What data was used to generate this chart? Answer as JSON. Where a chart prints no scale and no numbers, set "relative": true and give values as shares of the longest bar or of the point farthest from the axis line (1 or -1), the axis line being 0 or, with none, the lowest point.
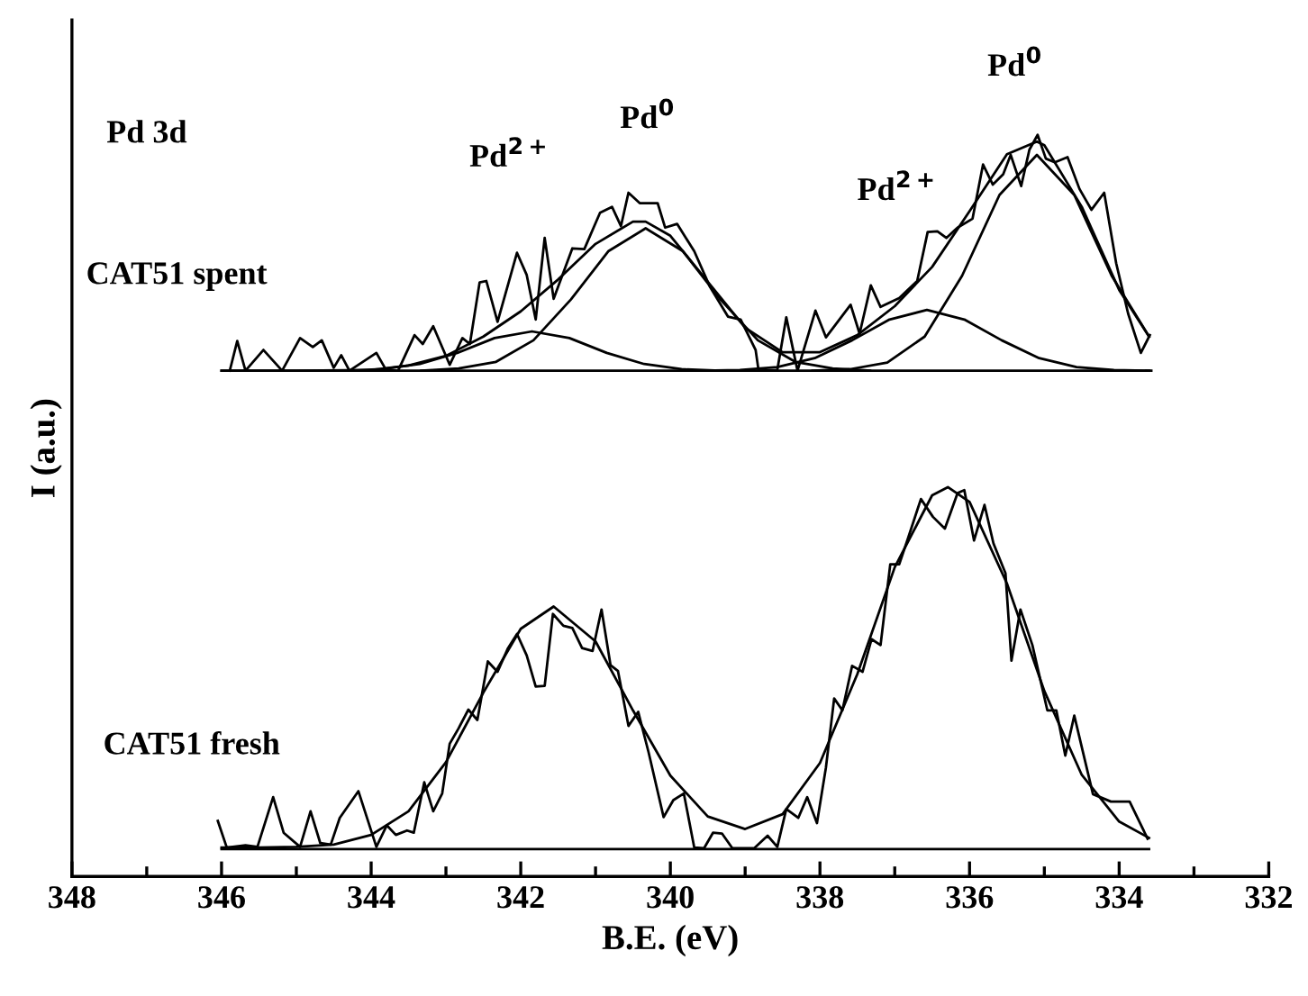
{
  "chart_data": {
    "type": "line",
    "relative": true,
    "xlabel": "B.E. (eV)",
    "ylabel": "I (a.u.)",
    "xlim": [
      348,
      332
    ],
    "xticks": [
      348,
      {
        "value": 347,
        "label": null
      },
      346,
      {
        "value": 345,
        "label": null
      },
      344,
      {
        "value": 343,
        "label": null
      },
      342,
      {
        "value": 341,
        "label": null
      },
      340,
      {
        "value": 339,
        "label": null
      },
      338,
      {
        "value": 337,
        "label": null
      },
      336,
      {
        "value": 335,
        "label": null
      },
      334,
      {
        "value": 333,
        "label": null
      },
      332
    ],
    "grid": false,
    "legend": false,
    "marker": "none",
    "line_style": "solid",
    "annotations": [
      "Pd 3d",
      "Pd$^{2+}$",
      "Pd$^{0}$",
      "Pd$^{2+}$",
      "Pd$^{0}$",
      "CAT51 spent",
      "CAT51 fresh"
    ],
    "series": [
      {
        "color": "#000000",
        "x": [
          346.05,
          345.93,
          345.68,
          345.52,
          345.31,
          345.17,
          344.95,
          344.81,
          344.68,
          344.54,
          344.42,
          344.17,
          343.93,
          343.79,
          343.67,
          343.52,
          343.43,
          343.29,
          343.17,
          343.05,
          342.95,
          342.83,
          342.7,
          342.58,
          342.44,
          342.31,
          342.17,
          342.05,
          341.92,
          341.8,
          341.68,
          341.57,
          341.43,
          341.31,
          341.18,
          341.04,
          340.92,
          340.8,
          340.7,
          340.56,
          340.43,
          340.29,
          340.09,
          339.96,
          339.82,
          339.68,
          339.55,
          339.43,
          339.31,
          339.17,
          338.88,
          338.7,
          338.57,
          338.45,
          338.29,
          338.17,
          338.04,
          337.92,
          337.81,
          337.7,
          337.57,
          337.43,
          337.31,
          337.19,
          337.06,
          336.94,
          336.82,
          336.65,
          336.49,
          336.33,
          336.16,
          336.07,
          335.94,
          335.8,
          335.68,
          335.52,
          335.44,
          335.32,
          335.16,
          334.96,
          334.84,
          334.72,
          334.6,
          334.35,
          334.11,
          333.86,
          333.62
        ],
        "values": [
          0.075,
          0.039,
          0.042,
          0.04,
          0.107,
          0.059,
          0.04,
          0.088,
          0.045,
          0.043,
          0.079,
          0.115,
          0.04,
          0.069,
          0.056,
          0.062,
          0.059,
          0.127,
          0.088,
          0.112,
          0.179,
          0.2,
          0.225,
          0.211,
          0.29,
          0.276,
          0.308,
          0.327,
          0.298,
          0.256,
          0.257,
          0.354,
          0.338,
          0.335,
          0.308,
          0.304,
          0.36,
          0.285,
          0.277,
          0.203,
          0.222,
          0.167,
          0.08,
          0.103,
          0.112,
          0.039,
          0.038,
          0.059,
          0.058,
          0.038,
          0.038,
          0.055,
          0.04,
          0.091,
          0.079,
          0.107,
          0.072,
          0.147,
          0.24,
          0.224,
          0.284,
          0.276,
          0.32,
          0.312,
          0.421,
          0.421,
          0.457,
          0.509,
          0.485,
          0.469,
          0.517,
          0.521,
          0.453,
          0.501,
          0.449,
          0.409,
          0.291,
          0.36,
          0.312,
          0.224,
          0.224,
          0.163,
          0.217,
          0.111,
          0.101,
          0.101,
          0.051
        ]
      },
      {
        "color": "#000000",
        "x": [
          346,
          345.5,
          345,
          344.5,
          344,
          343.5,
          343,
          342.5,
          342,
          341.56,
          341,
          340.5,
          340,
          339.5,
          339,
          338.5,
          338,
          337.5,
          337,
          336.5,
          336.29,
          336,
          335.5,
          335,
          334.5,
          334,
          333.6
        ],
        "values": [
          0.039,
          0.039,
          0.04,
          0.043,
          0.056,
          0.088,
          0.154,
          0.248,
          0.334,
          0.364,
          0.317,
          0.224,
          0.136,
          0.081,
          0.064,
          0.084,
          0.153,
          0.273,
          0.417,
          0.514,
          0.525,
          0.505,
          0.395,
          0.25,
          0.137,
          0.074,
          0.052
        ]
      },
      {
        "color": "#000000",
        "x": [
          346,
          333.6
        ],
        "values": [
          0.037,
          0.037
        ]
      },
      {
        "color": "#000000",
        "x": [
          345.89,
          345.79,
          345.68,
          345.44,
          345.19,
          344.95,
          344.78,
          344.66,
          344.5,
          344.4,
          344.29,
          343.93,
          343.8,
          343.64,
          343.42,
          343.31,
          343.17,
          342.95,
          342.78,
          342.68,
          342.55,
          342.46,
          342.31,
          342.05,
          341.92,
          341.8,
          341.68,
          341.56,
          341.31,
          341.15,
          340.94,
          340.78,
          340.66,
          340.56,
          340.41,
          340.17,
          340.07,
          339.91,
          339.68,
          339.47,
          339.23,
          339.06,
          338.86,
          338.82,
          338.57,
          338.45,
          338.3,
          338.06,
          337.92,
          337.59,
          337.47,
          337.32,
          337.19,
          336.94,
          336.7,
          336.56,
          336.43,
          336.31,
          336.16,
          335.96,
          335.82,
          335.69,
          335.55,
          335.45,
          335.31,
          335.2,
          335.09,
          334.98,
          334.86,
          334.69,
          334.53,
          334.37,
          334.2,
          334.04,
          333.88,
          333.71,
          333.59
        ],
        "values": [
          0.682,
          0.722,
          0.682,
          0.71,
          0.682,
          0.726,
          0.714,
          0.723,
          0.686,
          0.703,
          0.682,
          0.706,
          0.683,
          0.682,
          0.73,
          0.718,
          0.742,
          0.69,
          0.726,
          0.718,
          0.801,
          0.803,
          0.748,
          0.841,
          0.811,
          0.751,
          0.861,
          0.779,
          0.847,
          0.846,
          0.895,
          0.903,
          0.877,
          0.922,
          0.908,
          0.908,
          0.875,
          0.88,
          0.843,
          0.795,
          0.755,
          0.751,
          0.71,
          0.682,
          0.683,
          0.754,
          0.682,
          0.763,
          0.727,
          0.771,
          0.732,
          0.797,
          0.768,
          0.78,
          0.803,
          0.869,
          0.87,
          0.861,
          0.875,
          0.887,
          0.96,
          0.933,
          0.947,
          0.973,
          0.931,
          0.98,
          1.0,
          0.968,
          0.963,
          0.97,
          0.927,
          0.899,
          0.922,
          0.827,
          0.759,
          0.706,
          0.73
        ]
      },
      {
        "color": "#000000",
        "x": [
          346,
          345,
          344,
          343.5,
          343,
          342.5,
          342,
          341.5,
          341,
          340.5,
          340.33,
          340,
          339.5,
          339,
          338.5,
          338,
          337.5,
          337,
          336.5,
          336,
          335.5,
          335.1,
          335,
          334.5,
          334,
          333.6
        ],
        "values": [
          0.682,
          0.682,
          0.683,
          0.689,
          0.702,
          0.728,
          0.762,
          0.805,
          0.853,
          0.883,
          0.883,
          0.864,
          0.802,
          0.74,
          0.707,
          0.707,
          0.73,
          0.769,
          0.822,
          0.897,
          0.974,
          0.991,
          0.986,
          0.903,
          0.791,
          0.728
        ]
      },
      {
        "color": "#000000",
        "x": [
          344.35,
          343.85,
          343.35,
          342.85,
          342.35,
          341.85,
          341.35,
          340.85,
          340.35,
          339.85,
          339.35
        ],
        "values": [
          0.682,
          0.684,
          0.691,
          0.706,
          0.726,
          0.735,
          0.726,
          0.706,
          0.691,
          0.684,
          0.682
        ]
      },
      {
        "color": "#000000",
        "x": [
          343.33,
          342.83,
          342.33,
          341.83,
          341.33,
          340.83,
          340.33,
          339.83,
          339.33,
          338.83,
          338.33,
          337.83,
          337.33
        ],
        "values": [
          0.682,
          0.685,
          0.694,
          0.723,
          0.778,
          0.843,
          0.874,
          0.843,
          0.778,
          0.723,
          0.694,
          0.685,
          0.682
        ]
      },
      {
        "color": "#000000",
        "x": [
          339.57,
          339.07,
          338.57,
          338.07,
          337.57,
          337.07,
          336.57,
          336.07,
          335.57,
          335.07,
          334.57,
          334.07,
          333.57
        ],
        "values": [
          0.682,
          0.683,
          0.687,
          0.699,
          0.723,
          0.751,
          0.764,
          0.751,
          0.723,
          0.699,
          0.687,
          0.683,
          0.682
        ]
      },
      {
        "color": "#000000",
        "x": [
          338.1,
          337.6,
          337.1,
          336.6,
          336.1,
          335.6,
          335.1,
          334.6,
          334.1,
          333.6
        ],
        "values": [
          0.682,
          0.684,
          0.693,
          0.728,
          0.81,
          0.919,
          0.973,
          0.919,
          0.81,
          0.728
        ]
      },
      {
        "color": "#000000",
        "x": [
          346,
          333.6
        ],
        "values": [
          0.682,
          0.682
        ]
      }
    ]
  }
}
